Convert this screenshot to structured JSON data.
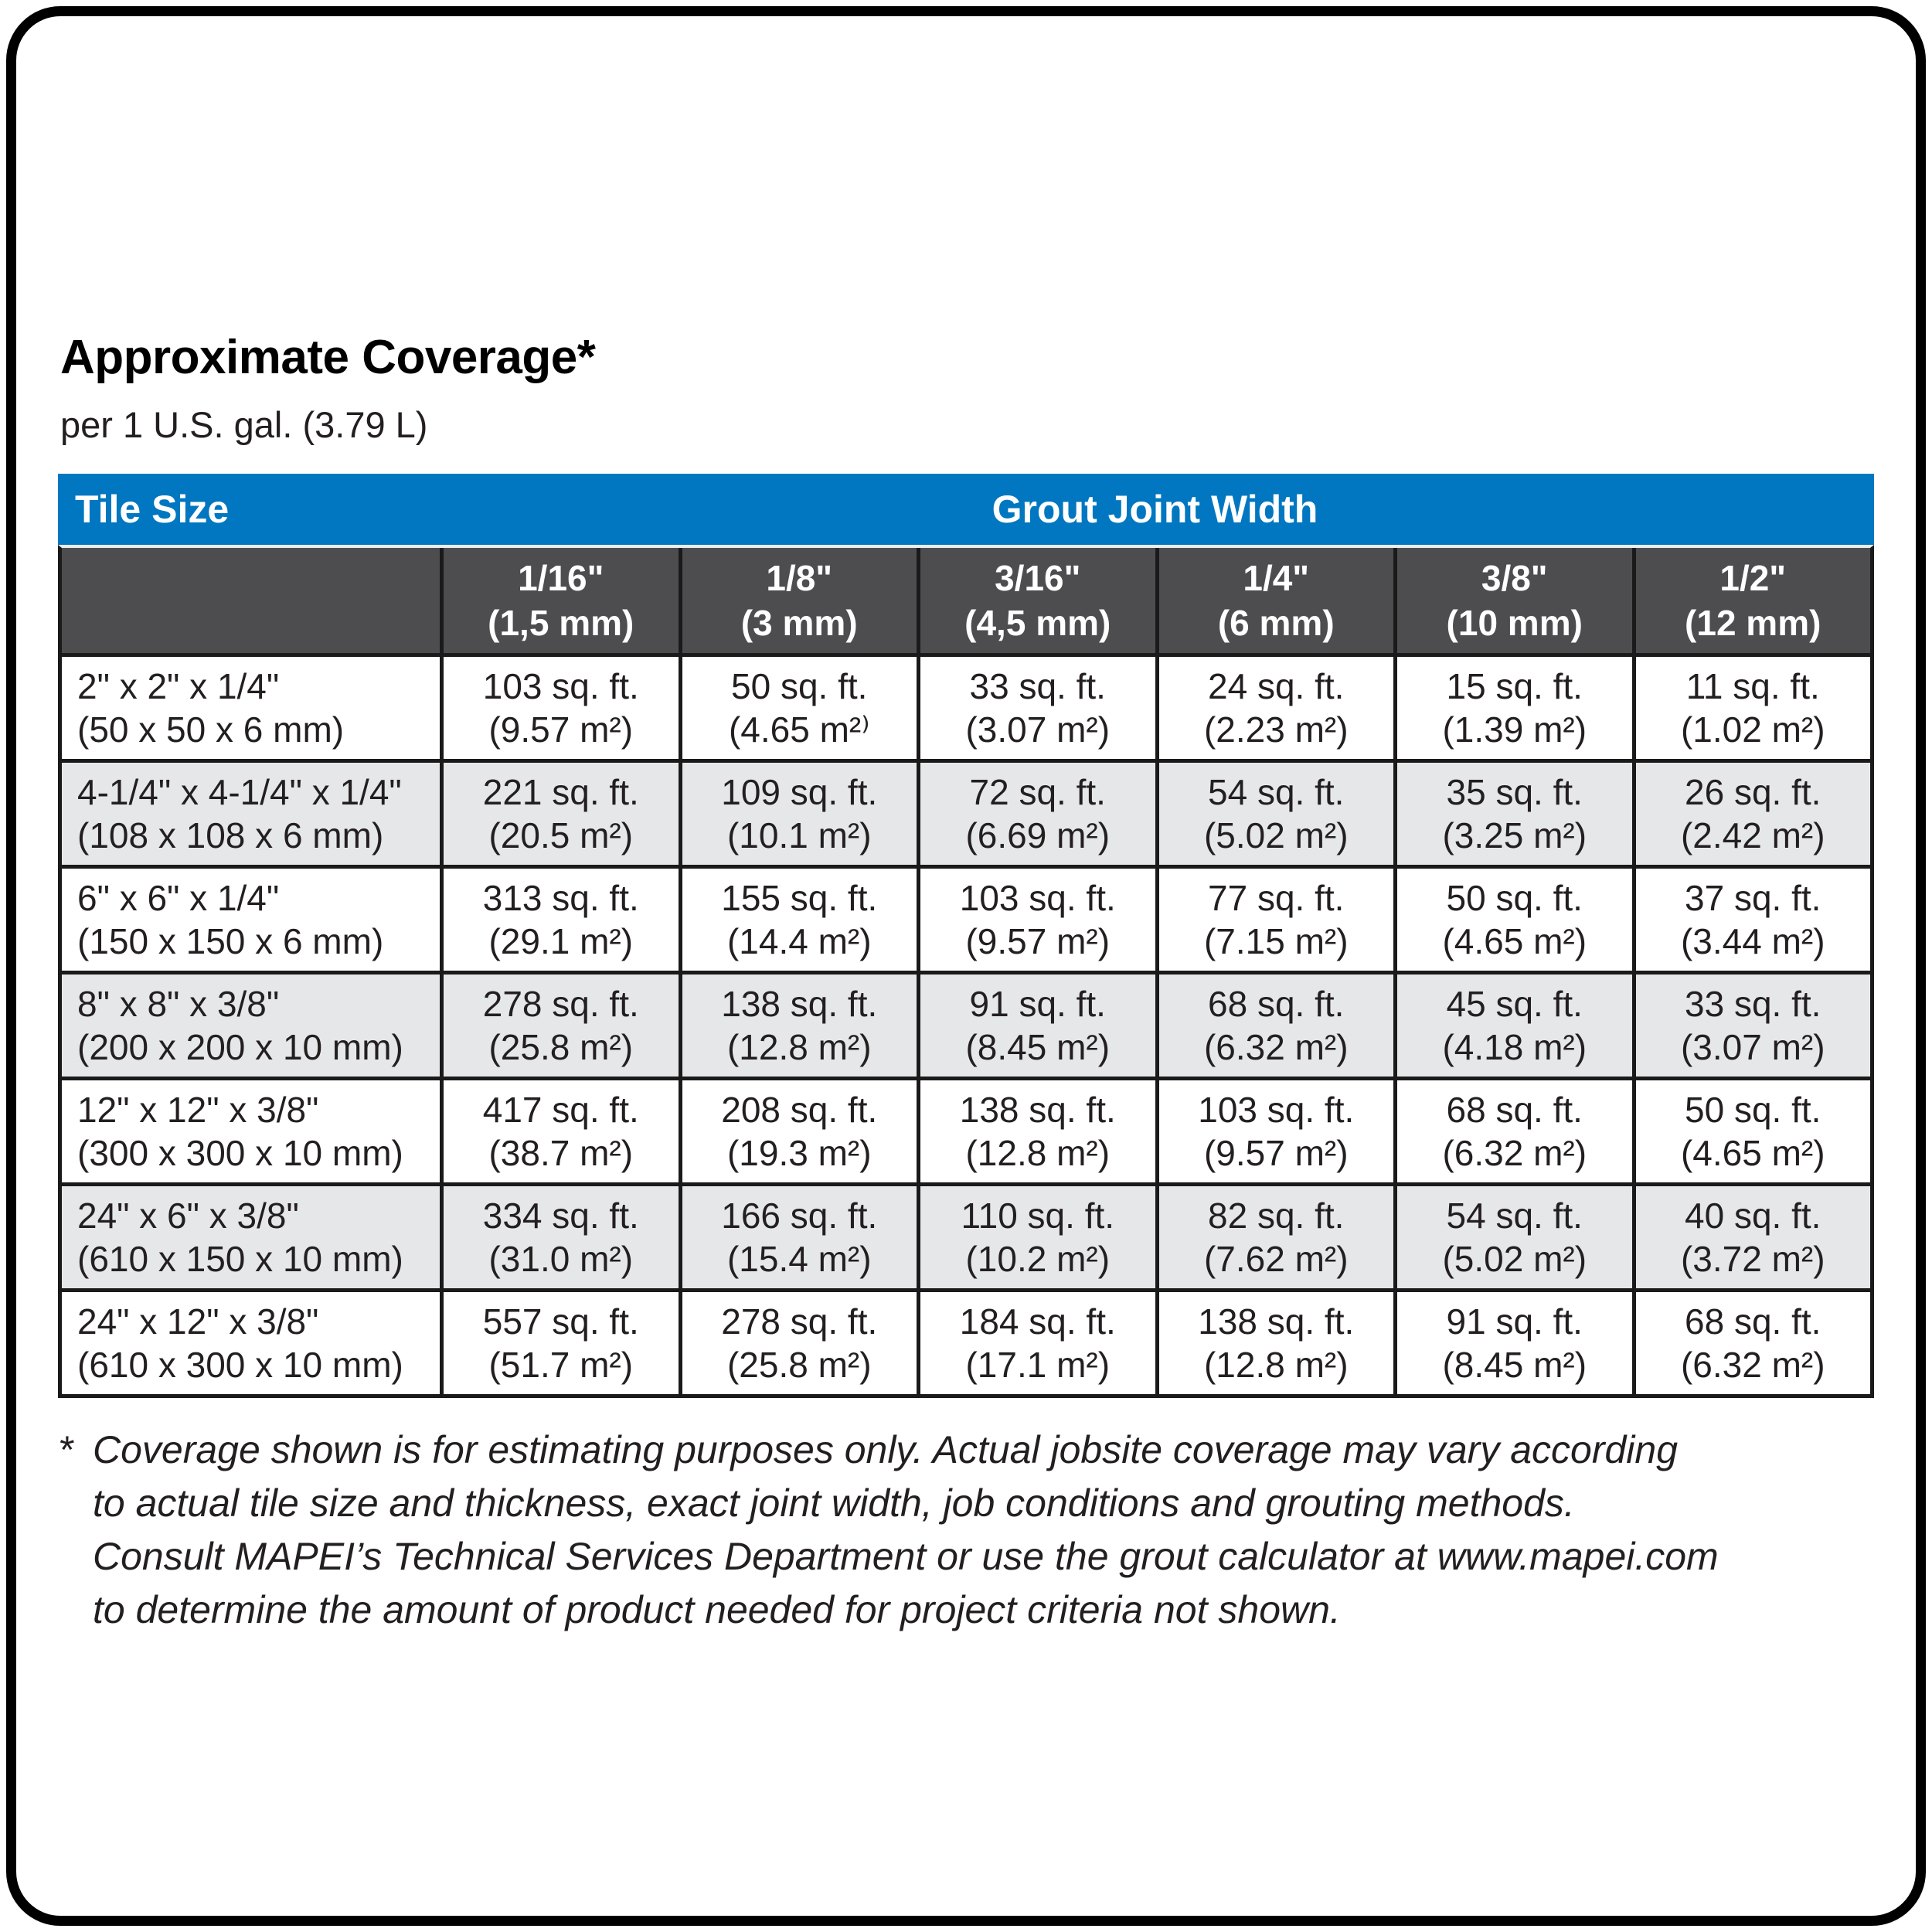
{
  "page": {
    "title": "Approximate Coverage*",
    "subtitle": "per 1 U.S. gal. (3.79 L)"
  },
  "colors": {
    "header_blue": "#0077C0",
    "header_dark": "#4D4D4F",
    "row_alt": "#E6E7E8",
    "border": "#1A1A1A",
    "text": "#231F20"
  },
  "table": {
    "corner_label": "Tile Size",
    "group_label": "Grout Joint Width",
    "columns": [
      {
        "inch": "1/16\"",
        "mm": "(1,5 mm)"
      },
      {
        "inch": "1/8\"",
        "mm": "(3 mm)"
      },
      {
        "inch": "3/16\"",
        "mm": "(4,5 mm)"
      },
      {
        "inch": "1/4\"",
        "mm": "(6 mm)"
      },
      {
        "inch": "3/8\"",
        "mm": "(10 mm)"
      },
      {
        "inch": "1/2\"",
        "mm": "(12 mm)"
      }
    ],
    "rows": [
      {
        "tile_in": "2\" x 2\" x 1/4\"",
        "tile_mm": "(50 x 50 x 6 mm)",
        "cells": [
          [
            "103 sq. ft.",
            "(9.57 m²)"
          ],
          [
            "50 sq. ft.",
            "(4.65 m²⁾"
          ],
          [
            "33 sq. ft.",
            "(3.07 m²)"
          ],
          [
            "24 sq. ft.",
            "(2.23 m²)"
          ],
          [
            "15 sq. ft.",
            "(1.39 m²)"
          ],
          [
            "11 sq. ft.",
            "(1.02 m²)"
          ]
        ]
      },
      {
        "tile_in": "4-1/4\" x 4-1/4\" x 1/4\"",
        "tile_mm": "(108 x 108 x 6 mm)",
        "cells": [
          [
            "221 sq. ft.",
            "(20.5 m²)"
          ],
          [
            "109 sq. ft.",
            "(10.1 m²)"
          ],
          [
            "72 sq. ft.",
            "(6.69 m²)"
          ],
          [
            "54 sq. ft.",
            "(5.02 m²)"
          ],
          [
            "35 sq. ft.",
            "(3.25 m²)"
          ],
          [
            "26 sq. ft.",
            "(2.42 m²)"
          ]
        ]
      },
      {
        "tile_in": "6\" x 6\" x 1/4\"",
        "tile_mm": "(150 x 150 x 6 mm)",
        "cells": [
          [
            "313 sq. ft.",
            "(29.1 m²)"
          ],
          [
            "155 sq. ft.",
            "(14.4 m²)"
          ],
          [
            "103 sq. ft.",
            "(9.57 m²)"
          ],
          [
            "77 sq. ft.",
            "(7.15 m²)"
          ],
          [
            "50 sq. ft.",
            "(4.65 m²)"
          ],
          [
            "37 sq. ft.",
            "(3.44 m²)"
          ]
        ]
      },
      {
        "tile_in": "8\" x 8\" x 3/8\"",
        "tile_mm": "(200 x 200 x 10 mm)",
        "cells": [
          [
            "278 sq. ft.",
            "(25.8 m²)"
          ],
          [
            "138 sq. ft.",
            "(12.8 m²)"
          ],
          [
            "91 sq. ft.",
            "(8.45 m²)"
          ],
          [
            "68 sq. ft.",
            "(6.32 m²)"
          ],
          [
            "45 sq. ft.",
            "(4.18 m²)"
          ],
          [
            "33 sq. ft.",
            "(3.07 m²)"
          ]
        ]
      },
      {
        "tile_in": "12\" x 12\" x 3/8\"",
        "tile_mm": "(300 x 300 x 10 mm)",
        "cells": [
          [
            "417 sq. ft.",
            "(38.7 m²)"
          ],
          [
            "208 sq. ft.",
            "(19.3 m²)"
          ],
          [
            "138 sq. ft.",
            "(12.8 m²)"
          ],
          [
            "103 sq. ft.",
            "(9.57 m²)"
          ],
          [
            "68 sq. ft.",
            "(6.32 m²)"
          ],
          [
            "50 sq. ft.",
            "(4.65 m²)"
          ]
        ]
      },
      {
        "tile_in": "24\" x 6\" x 3/8\"",
        "tile_mm": "(610 x 150 x 10 mm)",
        "cells": [
          [
            "334 sq. ft.",
            "(31.0 m²)"
          ],
          [
            "166 sq. ft.",
            "(15.4 m²)"
          ],
          [
            "110 sq. ft.",
            "(10.2 m²)"
          ],
          [
            "82 sq. ft.",
            "(7.62 m²)"
          ],
          [
            "54 sq. ft.",
            "(5.02 m²)"
          ],
          [
            "40 sq. ft.",
            "(3.72 m²)"
          ]
        ]
      },
      {
        "tile_in": "24\" x 12\" x 3/8\"",
        "tile_mm": "(610 x 300 x 10 mm)",
        "cells": [
          [
            "557 sq. ft.",
            "(51.7 m²)"
          ],
          [
            "278 sq. ft.",
            "(25.8 m²)"
          ],
          [
            "184 sq. ft.",
            "(17.1 m²)"
          ],
          [
            "138 sq. ft.",
            "(12.8 m²)"
          ],
          [
            "91 sq. ft.",
            "(8.45 m²)"
          ],
          [
            "68 sq. ft.",
            "(6.32 m²)"
          ]
        ]
      }
    ]
  },
  "footnote": {
    "marker": "*",
    "lines": [
      "Coverage shown is for estimating purposes only. Actual jobsite coverage may vary according",
      "to actual tile size and thickness, exact joint width, job conditions and grouting methods.",
      "Consult MAPEI’s Technical Services Department or use the grout calculator at www.mapei.com",
      "to determine the amount of product needed for project criteria not shown."
    ]
  }
}
